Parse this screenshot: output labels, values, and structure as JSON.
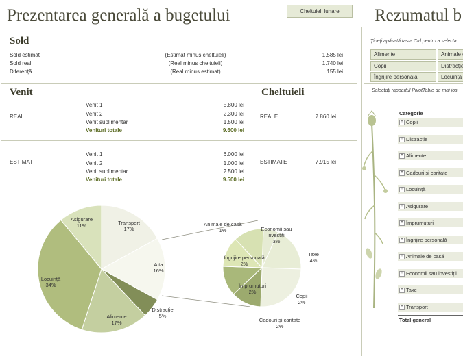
{
  "header": {
    "title": "Prezentarea generală a bugetului",
    "monthly_button": "Cheltuieli lunare",
    "summary_title": "Rezumatul b"
  },
  "sold": {
    "heading": "Sold",
    "rows": [
      {
        "label": "Sold estimat",
        "desc": "(Estimat minus cheltuieli)",
        "value": "1.585 lei"
      },
      {
        "label": "Sold real",
        "desc": "(Real minus cheltuieli)",
        "value": "1.740 lei"
      },
      {
        "label": "Diferență",
        "desc": "(Real minus estimat)",
        "value": "155 lei"
      }
    ]
  },
  "venit": {
    "heading": "Venit",
    "real": {
      "label": "REAL",
      "rows": [
        {
          "label": "Venit 1",
          "value": "5.800 lei"
        },
        {
          "label": "Venit 2",
          "value": "2.300 lei"
        },
        {
          "label": "Venit suplimentar",
          "value": "1.500 lei"
        }
      ],
      "total_label": "Venituri totale",
      "total_value": "9.600 lei"
    },
    "estimat": {
      "label": "ESTIMAT",
      "rows": [
        {
          "label": "Venit 1",
          "value": "6.000 lei"
        },
        {
          "label": "Venit 2",
          "value": "1.000 lei"
        },
        {
          "label": "Venit suplimentar",
          "value": "2.500 lei"
        }
      ],
      "total_label": "Venituri totale",
      "total_value": "9.500 lei"
    }
  },
  "cheltuieli": {
    "heading": "Cheltuieli",
    "reale_label": "REALE",
    "reale_value": "7.860 lei",
    "estimate_label": "ESTIMATE",
    "estimate_value": "7.915 lei"
  },
  "slicer": {
    "hint": "Țineți apăsată tasta Ctrl pentru a selecta",
    "buttons": [
      "Alimente",
      "Animale d",
      "Copii",
      "Distracție",
      "Îngrijire personală",
      "Locuință"
    ],
    "pivot_hint": "Selectați rapoartul PivotTable de mai jos,"
  },
  "pivot": {
    "header": "Categorie",
    "categories": [
      "Copii",
      "Distracție",
      "Alimente",
      "Cadouri și caritate",
      "Locuință",
      "Asigurare",
      "Împrumuturi",
      "Îngrijire personală",
      "Animale de casă",
      "Economii sau investiții",
      "Taxe",
      "Transport"
    ],
    "total": "Total general"
  },
  "chart_data": {
    "type": "pie",
    "main": {
      "slices": [
        {
          "label": "Transport",
          "pct": "17%",
          "value": 17,
          "color": "#f0f1e6"
        },
        {
          "label": "Alta",
          "pct": "16%",
          "value": 16,
          "color": "#f6f7ee"
        },
        {
          "label": "Distracție",
          "pct": "5%",
          "value": 5,
          "color": "#828e58"
        },
        {
          "label": "Alimente",
          "pct": "17%",
          "value": 17,
          "color": "#c4cfa0"
        },
        {
          "label": "Locuință",
          "pct": "34%",
          "value": 34,
          "color": "#b0bd7e"
        },
        {
          "label": "Asigurare",
          "pct": "11%",
          "value": 11,
          "color": "#d9e2bb"
        }
      ]
    },
    "secondary": {
      "slices": [
        {
          "label": "Animale de casă",
          "pct": "1%",
          "value": 1,
          "color": "#e6ebd4"
        },
        {
          "label": "Economii sau investiții",
          "pct": "3%",
          "value": 3,
          "color": "#e8edd6"
        },
        {
          "label": "Taxe",
          "pct": "4%",
          "value": 4,
          "color": "#edf0e0"
        },
        {
          "label": "Copii",
          "pct": "2%",
          "value": 2,
          "color": "#9caa6e"
        },
        {
          "label": "Cadouri și caritate",
          "pct": "2%",
          "value": 2,
          "color": "#a9b87a"
        },
        {
          "label": "Împrumuturi",
          "pct": "2%",
          "value": 2,
          "color": "#dde6b5"
        },
        {
          "label": "Îngrijire personală",
          "pct": "2%",
          "value": 2,
          "color": "#d7e1b2"
        }
      ]
    }
  }
}
